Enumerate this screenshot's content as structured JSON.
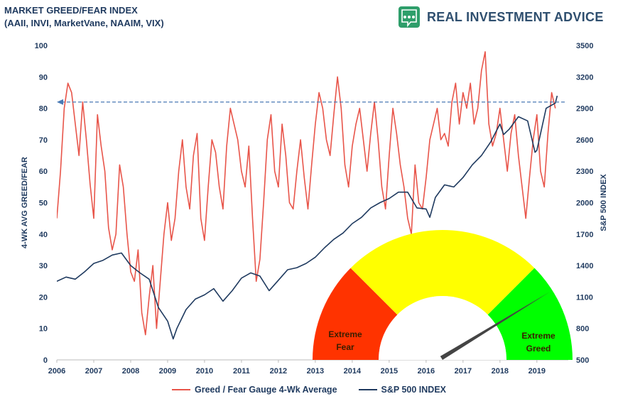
{
  "header": {
    "title_line1": "MARKET GREED/FEAR INDEX",
    "title_line2": "(AAII, INVI, MarketVane, NAAIM, VIX)",
    "brand": "REAL INVESTMENT ADVICE"
  },
  "colors": {
    "greed_fear_line": "#e8554a",
    "sp500_line": "#1f3a5f",
    "reference_line": "#4a7ab5",
    "gauge_red": "#ff3300",
    "gauge_yellow": "#ffff00",
    "gauge_green": "#00ff00",
    "needle": "#444444",
    "brand_green": "#2e9e6a"
  },
  "gauge": {
    "left_label_1": "Extreme",
    "left_label_2": "Fear",
    "right_label_1": "Extreme",
    "right_label_2": "Greed",
    "needle_value": 82
  },
  "legend": {
    "series1": "Greed / Fear Gauge 4-Wk Average",
    "series2": "S&P 500 INDEX"
  },
  "chart_data": {
    "type": "line",
    "title": "MARKET GREED/FEAR INDEX (AAII, INVI, MarketVane, NAAIM, VIX)",
    "xlabel": "",
    "ylabel": "4-WK AVG GREED/FEAR",
    "y2label": "S&P 500 INDEX",
    "xlim": [
      2006,
      2019.85
    ],
    "ylim": [
      0,
      100
    ],
    "y2lim": [
      500,
      3500
    ],
    "x_ticks": [
      "2006",
      "2007",
      "2008",
      "2009",
      "2010",
      "2011",
      "2012",
      "2013",
      "2014",
      "2015",
      "2016",
      "2017",
      "2018",
      "2019"
    ],
    "y_ticks": [
      0,
      10,
      20,
      30,
      40,
      50,
      60,
      70,
      80,
      90,
      100
    ],
    "y2_ticks": [
      500,
      800,
      1100,
      1400,
      1700,
      2000,
      2300,
      2600,
      2900,
      3200,
      3500
    ],
    "reference_line": 82,
    "series": [
      {
        "name": "Greed / Fear Gauge 4-Wk Average",
        "axis": "left",
        "x": [
          2006.0,
          2006.1,
          2006.2,
          2006.3,
          2006.4,
          2006.5,
          2006.6,
          2006.7,
          2006.8,
          2006.9,
          2007.0,
          2007.1,
          2007.2,
          2007.3,
          2007.4,
          2007.5,
          2007.6,
          2007.7,
          2007.8,
          2007.9,
          2008.0,
          2008.1,
          2008.2,
          2008.3,
          2008.4,
          2008.5,
          2008.6,
          2008.7,
          2008.8,
          2008.9,
          2009.0,
          2009.1,
          2009.2,
          2009.3,
          2009.4,
          2009.5,
          2009.6,
          2009.7,
          2009.8,
          2009.9,
          2010.0,
          2010.1,
          2010.2,
          2010.3,
          2010.4,
          2010.5,
          2010.6,
          2010.7,
          2010.8,
          2010.9,
          2011.0,
          2011.1,
          2011.2,
          2011.3,
          2011.4,
          2011.5,
          2011.6,
          2011.7,
          2011.8,
          2011.9,
          2012.0,
          2012.1,
          2012.2,
          2012.3,
          2012.4,
          2012.5,
          2012.6,
          2012.7,
          2012.8,
          2012.9,
          2013.0,
          2013.1,
          2013.2,
          2013.3,
          2013.4,
          2013.5,
          2013.6,
          2013.7,
          2013.8,
          2013.9,
          2014.0,
          2014.1,
          2014.2,
          2014.3,
          2014.4,
          2014.5,
          2014.6,
          2014.7,
          2014.8,
          2014.9,
          2015.0,
          2015.1,
          2015.2,
          2015.3,
          2015.4,
          2015.5,
          2015.6,
          2015.7,
          2015.8,
          2015.9,
          2016.0,
          2016.1,
          2016.2,
          2016.3,
          2016.4,
          2016.5,
          2016.6,
          2016.7,
          2016.8,
          2016.9,
          2017.0,
          2017.1,
          2017.2,
          2017.3,
          2017.4,
          2017.5,
          2017.6,
          2017.7,
          2017.8,
          2017.9,
          2018.0,
          2018.1,
          2018.2,
          2018.3,
          2018.4,
          2018.5,
          2018.6,
          2018.7,
          2018.8,
          2018.9,
          2019.0,
          2019.1,
          2019.2,
          2019.3,
          2019.4,
          2019.5
        ],
        "values": [
          45,
          60,
          80,
          88,
          85,
          75,
          65,
          82,
          70,
          56,
          45,
          78,
          68,
          60,
          42,
          35,
          40,
          62,
          55,
          40,
          28,
          25,
          35,
          15,
          8,
          20,
          30,
          10,
          25,
          40,
          50,
          38,
          45,
          60,
          70,
          55,
          48,
          65,
          72,
          45,
          38,
          55,
          70,
          66,
          55,
          48,
          68,
          80,
          75,
          70,
          60,
          55,
          68,
          45,
          25,
          32,
          50,
          70,
          78,
          60,
          55,
          75,
          65,
          50,
          48,
          60,
          70,
          58,
          48,
          62,
          75,
          85,
          80,
          70,
          65,
          78,
          90,
          80,
          62,
          55,
          68,
          75,
          80,
          70,
          60,
          72,
          82,
          70,
          55,
          48,
          65,
          80,
          72,
          62,
          55,
          45,
          40,
          62,
          50,
          48,
          58,
          70,
          75,
          80,
          70,
          72,
          68,
          82,
          88,
          75,
          85,
          80,
          88,
          75,
          80,
          92,
          98,
          75,
          68,
          72,
          80,
          70,
          60,
          72,
          78,
          65,
          55,
          45,
          58,
          70,
          78,
          60,
          55,
          72,
          85,
          80
        ]
      },
      {
        "name": "S&P 500 INDEX",
        "axis": "right",
        "x": [
          2006.0,
          2006.25,
          2006.5,
          2006.75,
          2007.0,
          2007.25,
          2007.5,
          2007.75,
          2008.0,
          2008.25,
          2008.5,
          2008.75,
          2009.0,
          2009.15,
          2009.25,
          2009.5,
          2009.75,
          2010.0,
          2010.25,
          2010.5,
          2010.75,
          2011.0,
          2011.25,
          2011.5,
          2011.75,
          2012.0,
          2012.25,
          2012.5,
          2012.75,
          2013.0,
          2013.25,
          2013.5,
          2013.75,
          2014.0,
          2014.25,
          2014.5,
          2014.75,
          2015.0,
          2015.25,
          2015.5,
          2015.75,
          2016.0,
          2016.1,
          2016.25,
          2016.5,
          2016.75,
          2017.0,
          2017.25,
          2017.5,
          2017.75,
          2018.0,
          2018.1,
          2018.25,
          2018.5,
          2018.75,
          2018.95,
          2019.0,
          2019.25,
          2019.5,
          2019.55
        ],
        "values": [
          1250,
          1290,
          1270,
          1340,
          1420,
          1450,
          1500,
          1520,
          1400,
          1330,
          1270,
          1000,
          870,
          700,
          800,
          980,
          1080,
          1120,
          1180,
          1060,
          1160,
          1280,
          1330,
          1300,
          1160,
          1260,
          1360,
          1380,
          1420,
          1480,
          1570,
          1650,
          1710,
          1800,
          1860,
          1950,
          2000,
          2040,
          2100,
          2100,
          1950,
          1940,
          1860,
          2050,
          2170,
          2150,
          2240,
          2360,
          2450,
          2580,
          2750,
          2650,
          2700,
          2820,
          2780,
          2480,
          2500,
          2900,
          2950,
          3020
        ]
      }
    ]
  }
}
